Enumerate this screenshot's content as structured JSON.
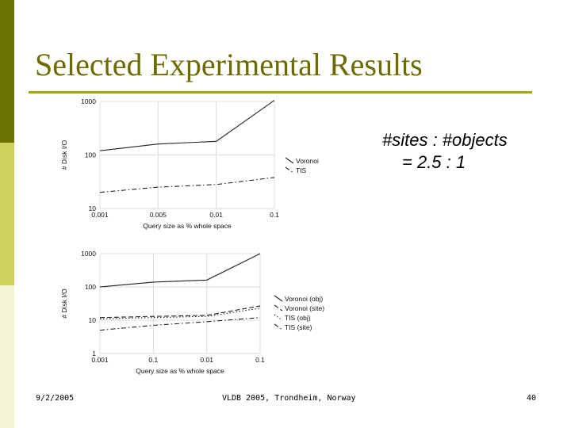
{
  "slide": {
    "title": "Selected Experimental Results",
    "ratio_line1": "#sites : #objects",
    "ratio_line2": "= 2.5 : 1",
    "footer_date": "9/2/2005",
    "footer_venue": "VLDB 2005, Trondheim, Norway",
    "page_number": "40"
  },
  "colors": {
    "sidebar_top": "#6b7200",
    "sidebar_mid": "#cfd15e",
    "sidebar_bottom": "#f2f3d3",
    "title": "#6b6b00",
    "rule": "#a3a800"
  },
  "chart_data": [
    {
      "type": "line",
      "ylabel": "# Disk I/O",
      "xlabel": "Query size as % whole space",
      "y_scale": "log",
      "ylim": [
        10,
        1000
      ],
      "y_ticks": [
        "1000",
        "100",
        "10"
      ],
      "categories": [
        "0.001",
        "0.005",
        "0.01",
        "0.1"
      ],
      "legend_position": "right",
      "series": [
        {
          "name": "Voronoi",
          "style": "solid",
          "values": [
            120,
            160,
            180,
            1050
          ]
        },
        {
          "name": "TIS",
          "style": "dash-dot",
          "values": [
            20,
            25,
            28,
            38
          ]
        }
      ]
    },
    {
      "type": "line",
      "ylabel": "# Disk I/O",
      "xlabel": "Query size as % whole space",
      "y_scale": "log",
      "ylim": [
        1,
        1000
      ],
      "y_ticks": [
        "1000",
        "100",
        "10",
        "1"
      ],
      "categories": [
        "0.001",
        "0.1",
        "0.01",
        "0.1"
      ],
      "legend_position": "right",
      "series": [
        {
          "name": "Voronoi (obj)",
          "style": "solid",
          "values": [
            100,
            140,
            160,
            1000
          ]
        },
        {
          "name": "Voronoi (site)",
          "style": "dashed",
          "values": [
            12,
            13,
            14,
            27
          ]
        },
        {
          "name": "TIS (obj)",
          "style": "dotted",
          "values": [
            11,
            12,
            13,
            23
          ]
        },
        {
          "name": "TIS (site)",
          "style": "dash-dot",
          "values": [
            5,
            7,
            9,
            12
          ]
        }
      ]
    }
  ]
}
